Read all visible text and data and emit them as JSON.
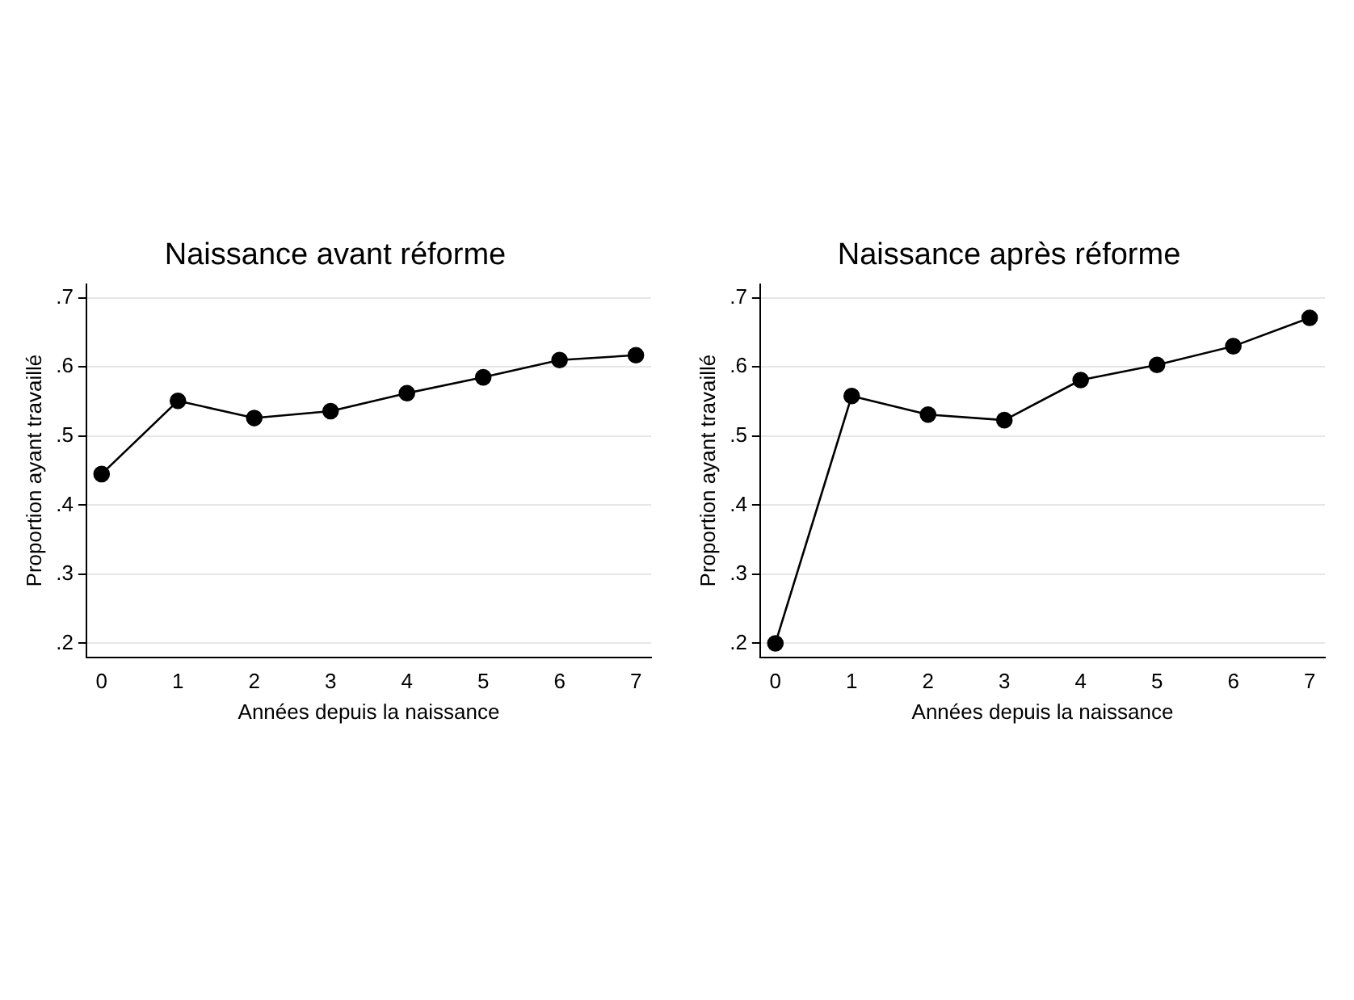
{
  "chart_data": [
    {
      "type": "line",
      "title": "Naissance avant réforme",
      "xlabel": "Années depuis la naissance",
      "ylabel": "Proportion ayant travaillé",
      "x": [
        0,
        1,
        2,
        3,
        4,
        5,
        6,
        7
      ],
      "series": [
        {
          "color": "#000000",
          "values": [
            0.445,
            0.551,
            0.526,
            0.536,
            0.562,
            0.585,
            0.61,
            0.617
          ]
        }
      ],
      "xlim": [
        -0.2,
        7.2
      ],
      "xticks": [
        0,
        1,
        2,
        3,
        4,
        5,
        6,
        7
      ],
      "ylim": [
        0.18,
        0.72
      ],
      "yticks": [
        {
          "value": 0.2,
          "label": ".2"
        },
        {
          "value": 0.3,
          "label": ".3"
        },
        {
          "value": 0.4,
          "label": ".4"
        },
        {
          "value": 0.5,
          "label": ".5"
        },
        {
          "value": 0.6,
          "label": ".6"
        },
        {
          "value": 0.7,
          "label": ".7"
        }
      ],
      "grid": "y",
      "legend": false,
      "marker": "circle",
      "line_style": "solid"
    },
    {
      "type": "line",
      "title": "Naissance après réforme",
      "xlabel": "Années depuis la naissance",
      "ylabel": "Proportion ayant travaillé",
      "x": [
        0,
        1,
        2,
        3,
        4,
        5,
        6,
        7
      ],
      "series": [
        {
          "color": "#000000",
          "values": [
            0.2,
            0.558,
            0.531,
            0.523,
            0.581,
            0.603,
            0.63,
            0.671
          ]
        }
      ],
      "xlim": [
        -0.2,
        7.2
      ],
      "xticks": [
        0,
        1,
        2,
        3,
        4,
        5,
        6,
        7
      ],
      "ylim": [
        0.18,
        0.72
      ],
      "yticks": [
        {
          "value": 0.2,
          "label": ".2"
        },
        {
          "value": 0.3,
          "label": ".3"
        },
        {
          "value": 0.4,
          "label": ".4"
        },
        {
          "value": 0.5,
          "label": ".5"
        },
        {
          "value": 0.6,
          "label": ".6"
        },
        {
          "value": 0.7,
          "label": ".7"
        }
      ],
      "grid": "y",
      "legend": false,
      "marker": "circle",
      "line_style": "solid"
    }
  ]
}
